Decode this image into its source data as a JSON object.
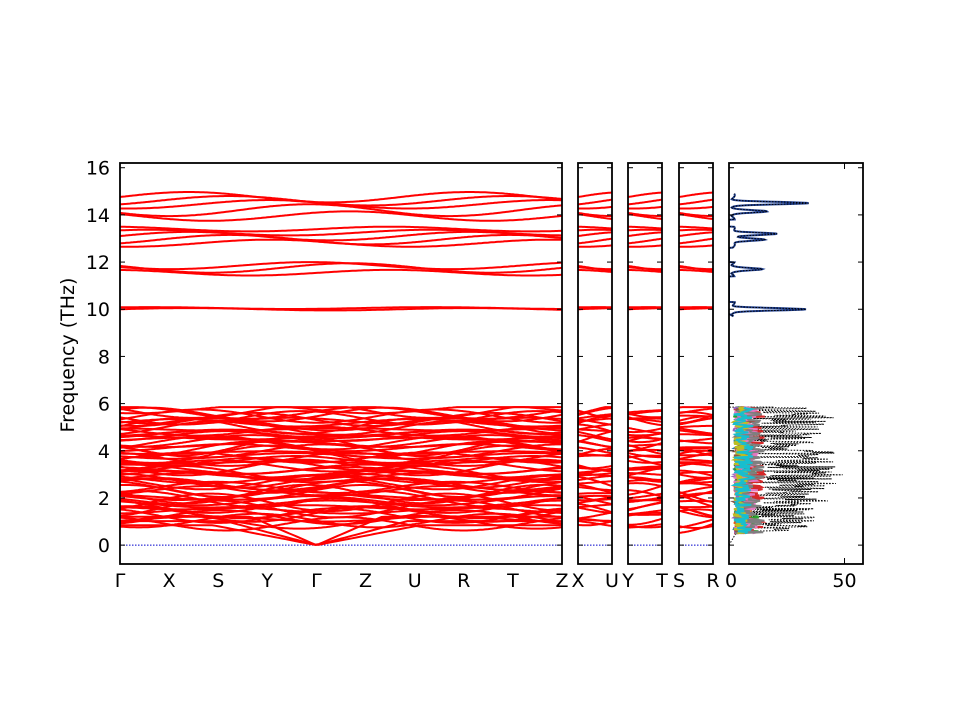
{
  "chart_data": {
    "type": "line",
    "title": "",
    "ylabel": "Frequency (THz)",
    "ylim": [
      -0.8,
      16.2
    ],
    "yticks": [
      0,
      2,
      4,
      6,
      8,
      10,
      12,
      14,
      16
    ],
    "grid": false,
    "colors": {
      "bands": "#ff0000",
      "zero_line": "#0000cc",
      "dos_total": "#000000",
      "dos_upper": "#1f3f8f",
      "dos_partials": [
        "#1f77b4",
        "#ff7f0e",
        "#2ca02c",
        "#d62728",
        "#9467bd",
        "#8c564b",
        "#e377c2",
        "#7f7f7f",
        "#bcbd22",
        "#17becf"
      ]
    },
    "band_panels": [
      {
        "labels": [
          "Γ",
          "X",
          "S",
          "Y",
          "Γ",
          "Z",
          "U",
          "R",
          "T",
          "Z"
        ],
        "xrange": [
          0,
          9
        ]
      },
      {
        "labels": [
          "X",
          "U"
        ],
        "xrange": [
          0,
          1
        ]
      },
      {
        "labels": [
          "Y",
          "T"
        ],
        "xrange": [
          0,
          1
        ]
      },
      {
        "labels": [
          "S",
          "R"
        ],
        "xrange": [
          0,
          1
        ]
      }
    ],
    "band_groups": [
      {
        "name": "acoustic_optical_low",
        "range": [
          0.0,
          5.85
        ]
      },
      {
        "name": "band_10THz",
        "range": [
          9.9,
          10.1
        ]
      },
      {
        "name": "band_12THz",
        "range": [
          11.4,
          12.0
        ]
      },
      {
        "name": "band_13THz",
        "range": [
          12.6,
          13.5
        ]
      },
      {
        "name": "band_14THz",
        "range": [
          13.8,
          15.2
        ]
      }
    ],
    "upper_bands": [
      {
        "base": 10.0,
        "amp": 0.05
      },
      {
        "base": 10.05,
        "amp": 0.04
      },
      {
        "base": 11.55,
        "amp": 0.12
      },
      {
        "base": 11.75,
        "amp": 0.2
      },
      {
        "base": 11.85,
        "amp": 0.15
      },
      {
        "base": 12.8,
        "amp": 0.15
      },
      {
        "base": 12.95,
        "amp": 0.2
      },
      {
        "base": 13.1,
        "amp": 0.18
      },
      {
        "base": 13.25,
        "amp": 0.12
      },
      {
        "base": 13.4,
        "amp": 0.1
      },
      {
        "base": 13.95,
        "amp": 0.2
      },
      {
        "base": 14.2,
        "amp": 0.25
      },
      {
        "base": 14.45,
        "amp": 0.18
      },
      {
        "base": 14.6,
        "amp": 0.2
      },
      {
        "base": 14.75,
        "amp": 0.22
      }
    ],
    "dos_panel": {
      "xticks": [
        0,
        50
      ],
      "xlim": [
        0,
        58
      ],
      "upper_peaks": [
        {
          "f": 14.5,
          "dos": 32
        },
        {
          "f": 14.15,
          "dos": 14
        },
        {
          "f": 13.2,
          "dos": 19
        },
        {
          "f": 12.95,
          "dos": 14
        },
        {
          "f": 11.7,
          "dos": 12
        },
        {
          "f": 10.0,
          "dos": 31
        }
      ]
    }
  }
}
